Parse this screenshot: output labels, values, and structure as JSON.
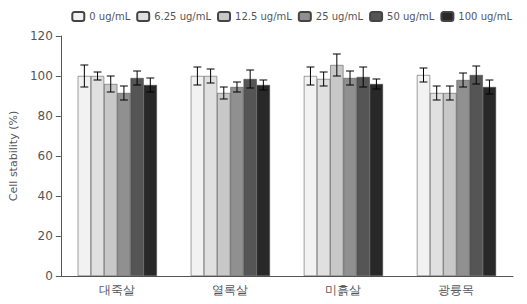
{
  "chart_data": {
    "type": "bar",
    "categories": [
      "대죽살",
      "열록살",
      "미흙살",
      "광륭목"
    ],
    "series": [
      {
        "name": "0 ug/mL",
        "color": "#f2f2f2",
        "values": [
          100.0,
          100.0,
          100.0,
          100.5
        ],
        "errors": [
          5.5,
          4.5,
          4.5,
          3.5
        ]
      },
      {
        "name": "6.25 ug/mL",
        "color": "#e0e0e0",
        "values": [
          100.0,
          100.0,
          98.5,
          91.5
        ],
        "errors": [
          2.0,
          3.5,
          3.5,
          3.5
        ]
      },
      {
        "name": "12.5 ug/mL",
        "color": "#c8c8c8",
        "values": [
          96.0,
          91.5,
          105.5,
          91.5
        ],
        "errors": [
          4.0,
          3.0,
          5.5,
          3.5
        ]
      },
      {
        "name": "25 ug/mL",
        "color": "#909090",
        "values": [
          91.5,
          94.5,
          99.0,
          98.0
        ],
        "errors": [
          3.5,
          2.5,
          3.5,
          3.5
        ]
      },
      {
        "name": "50 ug/mL",
        "color": "#555555",
        "values": [
          99.0,
          98.5,
          99.5,
          100.5
        ],
        "errors": [
          3.5,
          4.5,
          5.0,
          4.5
        ]
      },
      {
        "name": "100 ug/mL",
        "color": "#282828",
        "values": [
          95.5,
          95.5,
          96.0,
          94.5
        ],
        "errors": [
          3.5,
          2.5,
          2.5,
          3.5
        ]
      }
    ],
    "ylabel": "Cell stability (%)",
    "ylim": [
      0,
      120
    ],
    "yticks": [
      0,
      20,
      40,
      60,
      80,
      100,
      120
    ],
    "grid": false,
    "legend": "upper right"
  }
}
